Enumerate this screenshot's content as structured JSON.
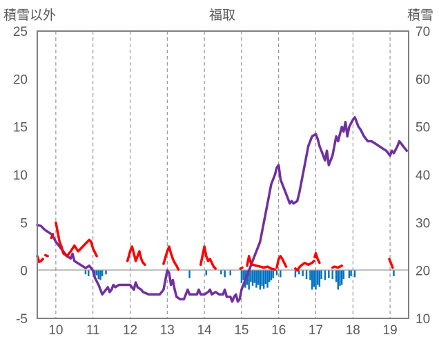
{
  "chart_data": {
    "type": "line",
    "title": "福取",
    "left_axis_label": "積雪以外",
    "right_axis_label": "積雪",
    "left_ylim": [
      -5,
      25
    ],
    "left_ticks": [
      "-5",
      "0",
      "5",
      "10",
      "15",
      "20",
      "25"
    ],
    "right_ylim": [
      10,
      70
    ],
    "right_ticks": [
      "10",
      "20",
      "30",
      "40",
      "50",
      "60",
      "70"
    ],
    "xlim": [
      9.5,
      19.5
    ],
    "x_ticks": [
      "10",
      "11",
      "12",
      "13",
      "14",
      "15",
      "16",
      "17",
      "18",
      "19"
    ],
    "grid": "vertical dashed at each day",
    "colors": {
      "snow_depth": "#7030a0",
      "precipitation": "#0070c0",
      "temperature": "#ff0000",
      "axis": "#808080"
    },
    "series": [
      {
        "axis": "right",
        "kind": "line",
        "points": [
          [
            9.5,
            29.5
          ],
          [
            9.6,
            29.3
          ],
          [
            9.7,
            28.5
          ],
          [
            9.8,
            28.0
          ],
          [
            9.9,
            27.5
          ],
          [
            10.0,
            26.0
          ],
          [
            10.1,
            25.0
          ],
          [
            10.2,
            24.0
          ],
          [
            10.3,
            23.0
          ],
          [
            10.4,
            22.5
          ],
          [
            10.45,
            23.5
          ],
          [
            10.5,
            22.0
          ],
          [
            10.6,
            21.5
          ],
          [
            10.7,
            21.0
          ],
          [
            10.8,
            20.5
          ],
          [
            10.9,
            21.0
          ],
          [
            11.0,
            20.0
          ],
          [
            11.05,
            18.5
          ],
          [
            11.15,
            17.0
          ],
          [
            11.2,
            16.0
          ],
          [
            11.25,
            15.0
          ],
          [
            11.3,
            15.5
          ],
          [
            11.35,
            16.0
          ],
          [
            11.4,
            16.5
          ],
          [
            11.45,
            15.5
          ],
          [
            11.5,
            16.0
          ],
          [
            11.55,
            17.0
          ],
          [
            11.6,
            16.5
          ],
          [
            11.7,
            17.0
          ],
          [
            11.8,
            17.0
          ],
          [
            11.9,
            17.0
          ],
          [
            12.0,
            17.0
          ],
          [
            12.1,
            16.0
          ],
          [
            12.15,
            17.5
          ],
          [
            12.2,
            16.5
          ],
          [
            12.3,
            16.0
          ],
          [
            12.35,
            15.5
          ],
          [
            12.5,
            15.0
          ],
          [
            12.6,
            15.0
          ],
          [
            12.7,
            15.0
          ],
          [
            12.8,
            15.0
          ],
          [
            12.9,
            16.0
          ],
          [
            12.95,
            18.0
          ],
          [
            13.0,
            20.0
          ],
          [
            13.05,
            19.5
          ],
          [
            13.1,
            17.0
          ],
          [
            13.15,
            18.0
          ],
          [
            13.2,
            16.0
          ],
          [
            13.25,
            14.5
          ],
          [
            13.35,
            14.0
          ],
          [
            13.45,
            14.0
          ],
          [
            13.5,
            15.0
          ],
          [
            13.55,
            16.0
          ],
          [
            13.6,
            15.0
          ],
          [
            13.7,
            15.0
          ],
          [
            13.8,
            15.0
          ],
          [
            13.85,
            16.0
          ],
          [
            13.9,
            15.0
          ],
          [
            14.0,
            15.0
          ],
          [
            14.1,
            15.5
          ],
          [
            14.15,
            16.0
          ],
          [
            14.2,
            15.0
          ],
          [
            14.3,
            15.5
          ],
          [
            14.4,
            15.0
          ],
          [
            14.5,
            15.0
          ],
          [
            14.55,
            16.0
          ],
          [
            14.6,
            14.5
          ],
          [
            14.7,
            14.5
          ],
          [
            14.75,
            13.5
          ],
          [
            14.8,
            14.5
          ],
          [
            14.85,
            15.0
          ],
          [
            14.9,
            13.5
          ],
          [
            14.95,
            14.0
          ],
          [
            15.0,
            16.0
          ],
          [
            15.1,
            18.0
          ],
          [
            15.2,
            20.0
          ],
          [
            15.3,
            22.0
          ],
          [
            15.4,
            24.0
          ],
          [
            15.5,
            26.0
          ],
          [
            15.6,
            30.0
          ],
          [
            15.7,
            34.0
          ],
          [
            15.8,
            38.0
          ],
          [
            15.9,
            40.0
          ],
          [
            15.95,
            41.5
          ],
          [
            16.0,
            42.0
          ],
          [
            16.05,
            39.0
          ],
          [
            16.1,
            38.0
          ],
          [
            16.2,
            36.0
          ],
          [
            16.25,
            35.0
          ],
          [
            16.3,
            34.0
          ],
          [
            16.35,
            34.5
          ],
          [
            16.4,
            34.0
          ],
          [
            16.5,
            34.5
          ],
          [
            16.55,
            36.0
          ],
          [
            16.6,
            38.0
          ],
          [
            16.7,
            42.0
          ],
          [
            16.8,
            46.0
          ],
          [
            16.9,
            48.0
          ],
          [
            17.0,
            48.5
          ],
          [
            17.05,
            47.5
          ],
          [
            17.1,
            46.0
          ],
          [
            17.2,
            44.0
          ],
          [
            17.25,
            43.0
          ],
          [
            17.3,
            45.0
          ],
          [
            17.35,
            42.0
          ],
          [
            17.4,
            43.0
          ],
          [
            17.45,
            44.0
          ],
          [
            17.5,
            46.0
          ],
          [
            17.55,
            48.0
          ],
          [
            17.6,
            47.0
          ],
          [
            17.7,
            50.0
          ],
          [
            17.75,
            49.0
          ],
          [
            17.8,
            51.0
          ],
          [
            17.85,
            48.0
          ],
          [
            17.9,
            50.0
          ],
          [
            18.0,
            51.5
          ],
          [
            18.05,
            52.0
          ],
          [
            18.1,
            51.0
          ],
          [
            18.15,
            50.0
          ],
          [
            18.2,
            49.5
          ],
          [
            18.3,
            48.0
          ],
          [
            18.4,
            47.0
          ],
          [
            18.5,
            47.0
          ],
          [
            18.6,
            46.5
          ],
          [
            18.7,
            46.0
          ],
          [
            18.8,
            45.5
          ],
          [
            18.9,
            45.0
          ],
          [
            19.0,
            44.0
          ],
          [
            19.05,
            45.0
          ],
          [
            19.1,
            44.5
          ],
          [
            19.2,
            46.0
          ],
          [
            19.25,
            47.0
          ],
          [
            19.3,
            46.5
          ],
          [
            19.4,
            45.5
          ],
          [
            19.45,
            45.0
          ]
        ]
      },
      {
        "axis": "left",
        "kind": "bars",
        "points": [
          [
            10.8,
            -0.4
          ],
          [
            10.88,
            -0.6
          ],
          [
            11.0,
            -0.3
          ],
          [
            11.05,
            -0.8
          ],
          [
            11.1,
            -0.5
          ],
          [
            11.15,
            -0.9
          ],
          [
            11.2,
            -1.0
          ],
          [
            11.25,
            -0.6
          ],
          [
            11.35,
            -0.4
          ],
          [
            13.6,
            -0.8
          ],
          [
            14.05,
            -0.5
          ],
          [
            14.45,
            -0.4
          ],
          [
            14.55,
            -0.7
          ],
          [
            14.7,
            -0.5
          ],
          [
            15.0,
            -1.3
          ],
          [
            15.05,
            -1.0
          ],
          [
            15.1,
            -1.8
          ],
          [
            15.15,
            -1.5
          ],
          [
            15.2,
            -2.0
          ],
          [
            15.25,
            -1.2
          ],
          [
            15.3,
            -1.6
          ],
          [
            15.35,
            -1.3
          ],
          [
            15.4,
            -1.8
          ],
          [
            15.45,
            -1.5
          ],
          [
            15.5,
            -2.0
          ],
          [
            15.55,
            -1.6
          ],
          [
            15.6,
            -1.9
          ],
          [
            15.65,
            -1.4
          ],
          [
            15.7,
            -1.8
          ],
          [
            15.75,
            -1.2
          ],
          [
            15.8,
            -1.0
          ],
          [
            15.85,
            -0.8
          ],
          [
            15.95,
            -0.5
          ],
          [
            16.05,
            -0.7
          ],
          [
            16.45,
            -0.7
          ],
          [
            16.55,
            -0.4
          ],
          [
            16.65,
            -0.6
          ],
          [
            16.75,
            -0.9
          ],
          [
            16.85,
            -1.0
          ],
          [
            16.9,
            -2.0
          ],
          [
            16.95,
            -1.7
          ],
          [
            17.0,
            -2.0
          ],
          [
            17.05,
            -1.5
          ],
          [
            17.1,
            -1.7
          ],
          [
            17.15,
            -0.9
          ],
          [
            17.25,
            -1.0
          ],
          [
            17.35,
            -0.8
          ],
          [
            17.45,
            -0.9
          ],
          [
            17.55,
            -1.2
          ],
          [
            17.6,
            -2.0
          ],
          [
            17.65,
            -1.6
          ],
          [
            17.7,
            -1.5
          ],
          [
            17.75,
            -0.9
          ],
          [
            17.9,
            -0.8
          ],
          [
            17.95,
            -0.6
          ],
          [
            18.05,
            -0.7
          ],
          [
            19.1,
            -0.6
          ]
        ]
      },
      {
        "axis": "left",
        "kind": "segments",
        "segments": [
          [
            [
              9.5,
              1.5
            ],
            [
              9.55,
              0.9
            ],
            [
              9.6,
              1.0
            ],
            [
              9.65,
              1.2
            ]
          ],
          [
            [
              9.72,
              1.6
            ],
            [
              9.78,
              1.5
            ]
          ],
          [
            [
              9.88,
              3.4
            ],
            [
              9.92,
              3.8
            ]
          ],
          [
            [
              10.0,
              5.0
            ],
            [
              10.05,
              4.0
            ],
            [
              10.1,
              3.0
            ],
            [
              10.15,
              2.5
            ],
            [
              10.2,
              1.8
            ],
            [
              10.3,
              1.5
            ],
            [
              10.4,
              2.0
            ],
            [
              10.5,
              2.6
            ],
            [
              10.6,
              2.0
            ],
            [
              10.7,
              2.4
            ],
            [
              10.8,
              2.8
            ],
            [
              10.9,
              3.2
            ],
            [
              10.95,
              3.0
            ],
            [
              11.0,
              2.3
            ],
            [
              11.1,
              1.5
            ]
          ],
          [
            [
              11.93,
              1.0
            ],
            [
              12.0,
              2.0
            ],
            [
              12.05,
              2.5
            ],
            [
              12.1,
              1.8
            ],
            [
              12.15,
              1.0
            ],
            [
              12.2,
              1.5
            ],
            [
              12.25,
              2.0
            ],
            [
              12.3,
              1.2
            ],
            [
              12.35,
              0.8
            ],
            [
              12.4,
              0.6
            ]
          ],
          [
            [
              12.9,
              0.7
            ],
            [
              13.0,
              2.0
            ],
            [
              13.05,
              2.5
            ],
            [
              13.1,
              1.8
            ],
            [
              13.15,
              1.2
            ],
            [
              13.2,
              0.8
            ],
            [
              13.25,
              0.5
            ],
            [
              13.3,
              0.1
            ]
          ],
          [
            [
              13.9,
              0.6
            ],
            [
              14.0,
              2.5
            ],
            [
              14.05,
              1.5
            ],
            [
              14.1,
              1.0
            ],
            [
              14.15,
              1.2
            ],
            [
              14.2,
              0.8
            ],
            [
              14.25,
              0.4
            ],
            [
              14.3,
              0.2
            ]
          ],
          [
            [
              14.97,
              0.2
            ],
            [
              15.02,
              0.3
            ]
          ],
          [
            [
              15.15,
              0.5
            ],
            [
              15.2,
              1.5
            ],
            [
              15.25,
              0.8
            ],
            [
              15.3,
              0.6
            ],
            [
              15.4,
              0.5
            ],
            [
              15.5,
              0.4
            ],
            [
              15.6,
              0.3
            ],
            [
              15.7,
              0.4
            ],
            [
              15.8,
              0.2
            ],
            [
              15.9,
              0.1
            ]
          ],
          [
            [
              15.95,
              0.3
            ],
            [
              16.0,
              1.2
            ],
            [
              16.05,
              1.5
            ],
            [
              16.1,
              1.2
            ],
            [
              16.15,
              0.8
            ],
            [
              16.2,
              0.4
            ]
          ],
          [
            [
              16.45,
              0.2
            ],
            [
              16.5,
              0.0
            ],
            [
              16.55,
              0.3
            ],
            [
              16.6,
              0.5
            ],
            [
              16.7,
              0.8
            ],
            [
              16.8,
              0.6
            ],
            [
              16.9,
              0.8
            ],
            [
              16.95,
              1.0
            ]
          ],
          [
            [
              16.97,
              1.4
            ],
            [
              17.0,
              1.8
            ],
            [
              17.05,
              1.2
            ],
            [
              17.1,
              0.8
            ]
          ],
          [
            [
              17.45,
              0.3
            ],
            [
              17.5,
              0.4
            ],
            [
              17.6,
              0.3
            ],
            [
              17.7,
              0.5
            ]
          ],
          [
            [
              18.98,
              1.2
            ],
            [
              19.02,
              0.8
            ],
            [
              19.07,
              0.3
            ]
          ]
        ]
      }
    ]
  }
}
